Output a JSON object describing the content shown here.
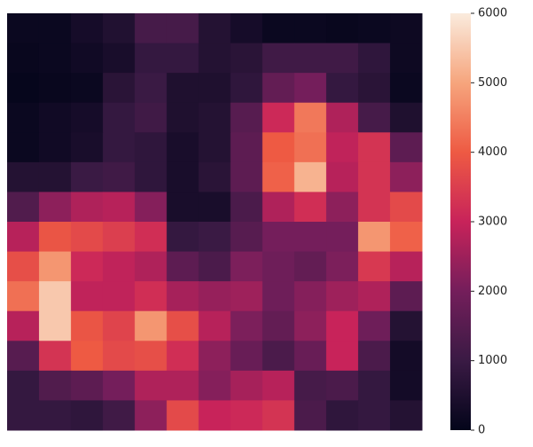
{
  "chart_data": {
    "type": "heatmap",
    "values": [
      [
        150,
        150,
        350,
        550,
        1200,
        1200,
        600,
        350,
        150,
        150,
        100,
        150,
        200
      ],
      [
        100,
        150,
        250,
        400,
        900,
        900,
        600,
        700,
        1100,
        1100,
        1100,
        800,
        200
      ],
      [
        50,
        100,
        150,
        700,
        1000,
        500,
        500,
        800,
        1700,
        2000,
        900,
        700,
        150
      ],
      [
        150,
        250,
        350,
        900,
        1100,
        500,
        600,
        1500,
        3100,
        4400,
        2700,
        1200,
        500
      ],
      [
        150,
        250,
        400,
        900,
        800,
        400,
        600,
        1600,
        4000,
        4300,
        2900,
        3300,
        1600
      ],
      [
        600,
        600,
        1000,
        1100,
        800,
        400,
        700,
        1600,
        4100,
        5200,
        2800,
        3300,
        2300
      ],
      [
        1400,
        2300,
        2700,
        2800,
        2200,
        400,
        400,
        1300,
        2700,
        3200,
        2300,
        3300,
        3700
      ],
      [
        2800,
        3900,
        3700,
        3500,
        3200,
        900,
        1000,
        1500,
        2000,
        2000,
        2000,
        4800,
        4100
      ],
      [
        3800,
        4800,
        3100,
        2900,
        2700,
        1600,
        1300,
        2100,
        1900,
        1700,
        2100,
        3400,
        2800
      ],
      [
        4300,
        5500,
        2900,
        2900,
        3200,
        2600,
        2400,
        2500,
        1900,
        2200,
        2500,
        2700,
        1600
      ],
      [
        2800,
        5500,
        3900,
        3600,
        4800,
        3800,
        2800,
        2100,
        1700,
        2300,
        3000,
        1900,
        600
      ],
      [
        1500,
        3300,
        4000,
        3700,
        3800,
        3200,
        2300,
        1800,
        1300,
        1800,
        3000,
        1300,
        300
      ],
      [
        900,
        1400,
        1600,
        2000,
        2700,
        2700,
        2200,
        2600,
        2800,
        1200,
        1300,
        900,
        300
      ],
      [
        900,
        900,
        800,
        1100,
        2300,
        3700,
        3000,
        3100,
        3300,
        1300,
        800,
        900,
        600
      ]
    ],
    "clim": [
      0,
      6000
    ],
    "cticks": [
      0,
      1000,
      2000,
      3000,
      4000,
      5000,
      6000
    ],
    "colorscale": [
      "#03051a",
      "#3a1a44",
      "#741e5b",
      "#c8235a",
      "#ee5a43",
      "#f6a57d",
      "#faebdd"
    ]
  }
}
